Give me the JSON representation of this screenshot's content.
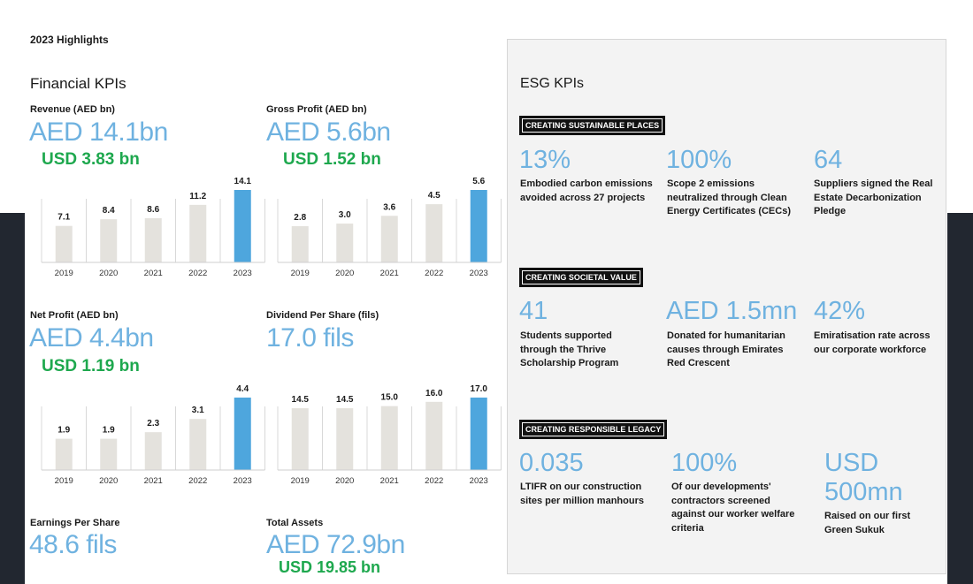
{
  "highlights_title": "2023 Highlights",
  "financial": {
    "title": "Financial KPIs",
    "revenue": {
      "label": "Revenue (AED bn)",
      "value": "AED 14.1bn",
      "usd": "USD 3.83 bn"
    },
    "gross_profit": {
      "label": "Gross Profit (AED bn)",
      "value": "AED 5.6bn",
      "usd": "USD 1.52 bn"
    },
    "net_profit": {
      "label": "Net Profit (AED bn)",
      "value": "AED 4.4bn",
      "usd": "USD 1.19 bn"
    },
    "dividend": {
      "label": "Dividend Per Share (fils)",
      "value": "17.0 fils"
    },
    "eps": {
      "label": "Earnings Per Share",
      "value": "48.6 fils"
    },
    "total_assets": {
      "label": "Total Assets",
      "value": "AED 72.9bn",
      "usd": "USD 19.85 bn"
    }
  },
  "esg": {
    "title": "ESG KPIs",
    "places": {
      "banner": "CREATING SUSTAINABLE PLACES",
      "items": [
        {
          "value": "13%",
          "desc": "Embodied carbon emissions avoided across 27 projects"
        },
        {
          "value": "100%",
          "desc": "Scope 2 emissions neutralized through Clean Energy Certificates (CECs)"
        },
        {
          "value": "64",
          "desc": "Suppliers signed the Real Estate Decarbonization Pledge"
        }
      ]
    },
    "societal": {
      "banner": "CREATING SOCIETAL VALUE",
      "items": [
        {
          "value": "41",
          "desc": "Students supported through the Thrive Scholarship Program"
        },
        {
          "value": "AED 1.5mn",
          "desc": "Donated for humanitarian causes through Emirates Red Crescent"
        },
        {
          "value": "42%",
          "desc": "Emiratisation rate across our corporate workforce"
        }
      ]
    },
    "legacy": {
      "banner": "CREATING RESPONSIBLE LEGACY",
      "items": [
        {
          "value": "0.035",
          "desc": "LTIFR on our construction sites per million manhours"
        },
        {
          "value": "100%",
          "desc": "Of our developments' contractors screened against our worker welfare criteria"
        },
        {
          "value": "USD 500mn",
          "desc": "Raised on our first Green Sukuk"
        }
      ]
    }
  },
  "colors": {
    "bar_past": "#e4e2dd",
    "bar_current": "#4ea6dd",
    "value_blue": "#6fb2e0",
    "usd_green": "#1ea84e"
  },
  "chart_data": [
    {
      "type": "bar",
      "id": "revenue",
      "categories": [
        "2019",
        "2020",
        "2021",
        "2022",
        "2023"
      ],
      "values": [
        7.1,
        8.4,
        8.6,
        11.2,
        14.1
      ],
      "ylim": [
        0,
        14.1
      ]
    },
    {
      "type": "bar",
      "id": "gross_profit",
      "categories": [
        "2019",
        "2020",
        "2021",
        "2022",
        "2023"
      ],
      "values": [
        2.8,
        3.0,
        3.6,
        4.5,
        5.6
      ],
      "ylim": [
        0,
        5.6
      ]
    },
    {
      "type": "bar",
      "id": "net_profit",
      "categories": [
        "2019",
        "2020",
        "2021",
        "2022",
        "2023"
      ],
      "values": [
        1.9,
        1.9,
        2.3,
        3.1,
        4.4
      ],
      "ylim": [
        0,
        4.4
      ]
    },
    {
      "type": "bar",
      "id": "dividend",
      "categories": [
        "2019",
        "2020",
        "2021",
        "2022",
        "2023"
      ],
      "values": [
        14.5,
        14.5,
        15.0,
        16.0,
        17.0
      ],
      "ylim": [
        0,
        17.0
      ]
    }
  ]
}
